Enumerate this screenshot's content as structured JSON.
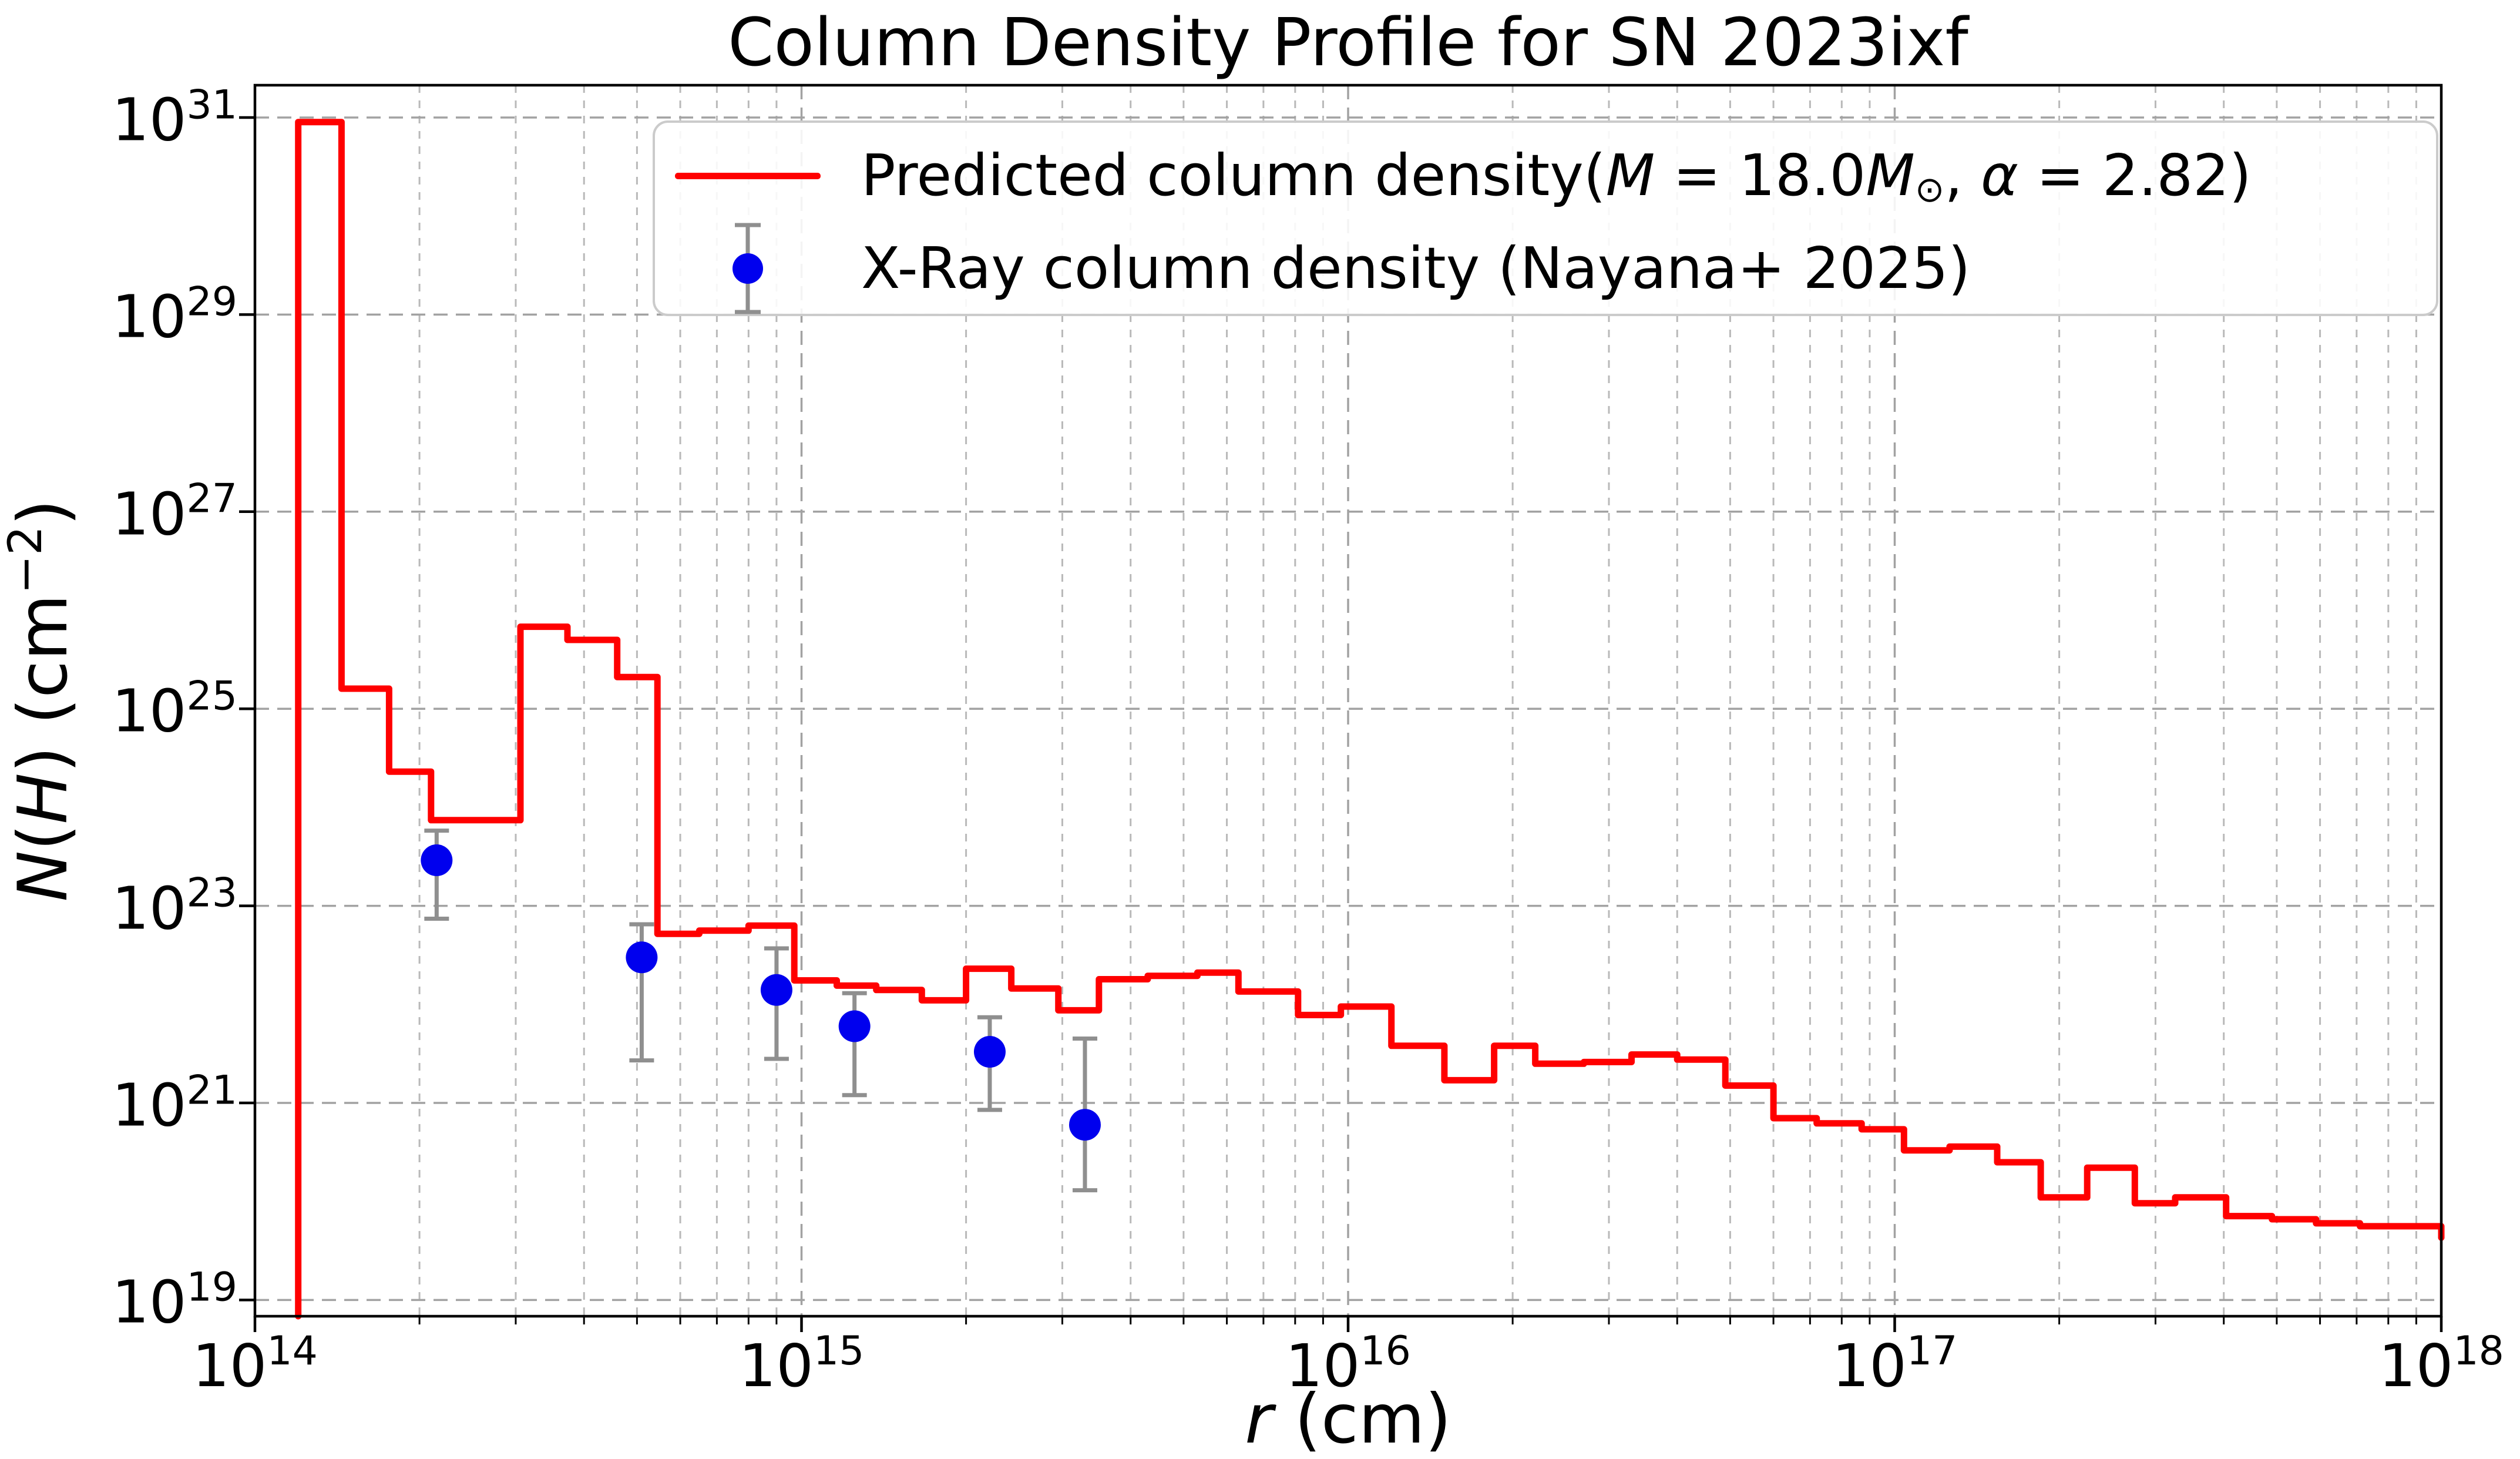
{
  "figure": {
    "title": "Column Density Profile for SN 2023ixf",
    "background_color": "#ffffff"
  },
  "axes": {
    "xlabel_plain": "r (cm)",
    "ylabel_plain": "N(H) (cm−2)",
    "xlabel_segments": [
      {
        "t": "r",
        "i": true
      },
      {
        "t": " (cm)"
      }
    ],
    "ylabel_segments": [
      {
        "t": "N",
        "i": true
      },
      {
        "t": "("
      },
      {
        "t": "H",
        "i": true
      },
      {
        "t": ") (cm"
      },
      {
        "t": "−2",
        "sup": true
      },
      {
        "t": ")"
      }
    ],
    "tick_base": "10",
    "x_tick_exponents": [
      "14",
      "15",
      "16",
      "17",
      "18"
    ],
    "y_tick_exponents": [
      "19",
      "21",
      "23",
      "25",
      "27",
      "29",
      "31"
    ],
    "grid_major_color": "#a2a2a2",
    "grid_minor_color": "#b9b9b9",
    "spine_color": "#000000"
  },
  "legend": {
    "entries": [
      {
        "name": "predicted-column-density",
        "marker": "line",
        "plain": "Predicted column density(M = 18.0M⊙, α = 2.82)",
        "segments": [
          {
            "t": "Predicted column density("
          },
          {
            "t": "M",
            "i": true
          },
          {
            "t": " = 18.0"
          },
          {
            "t": "M",
            "i": true
          },
          {
            "t": "⊙",
            "sub": true
          },
          {
            "t": ", "
          },
          {
            "t": "α",
            "i": true
          },
          {
            "t": " = 2.82)"
          }
        ]
      },
      {
        "name": "xray-column-density",
        "marker": "errorbar-point",
        "plain": "X-Ray column density (Nayana+ 2025)",
        "segments": [
          {
            "t": "X-Ray column density (Nayana+ 2025)"
          }
        ]
      }
    ]
  },
  "chart_data": {
    "type": "step+scatter",
    "title": "Column Density Profile for SN 2023ixf",
    "xlabel": "r (cm)",
    "ylabel": "N(H) (cm^-2)",
    "x_scale": "log",
    "y_scale": "log",
    "xlim": [
      100000000000000.0,
      1e+18
    ],
    "ylim": [
      6.9e+18,
      2.1e+31
    ],
    "grid": {
      "major": true,
      "minor_x": true,
      "style": "dashed"
    },
    "legend_loc": "upper right",
    "series": [
      {
        "name": "Predicted column density (M = 18.0 Msun, alpha = 2.82)",
        "type": "step",
        "color": "#ff0000",
        "linewidth": 11,
        "start_from_bottom": true,
        "bin_edges": [
          120000000000000.0,
          144000000000000.0,
          176000000000000.0,
          210000000000000.0,
          306000000000000.0,
          373000000000000.0,
          460000000000000.0,
          545000000000000.0,
          650000000000000.0,
          800000000000000.0,
          970000000000000.0,
          1160000000000000.0,
          1370000000000000.0,
          1660000000000000.0,
          2000000000000000.0,
          2420000000000000.0,
          2950000000000000.0,
          3500000000000000.0,
          4300000000000000.0,
          5300000000000000.0,
          6300000000000000.0,
          8100000000000000.0,
          9700000000000000.0,
          1.2e+16,
          1.5e+16,
          1.85e+16,
          2.2e+16,
          2.7e+16,
          3.3e+16,
          4e+16,
          4.9e+16,
          6e+16,
          7.2e+16,
          8.7e+16,
          1.04e+17,
          1.26e+17,
          1.54e+17,
          1.85e+17,
          2.25e+17,
          2.75e+17,
          3.26e+17,
          4.04e+17,
          4.9e+17,
          5.9e+17,
          7.1e+17,
          1e+18
        ],
        "values": [
          9e+30,
          1.6e+25,
          2.3e+24,
          7.4e+23,
          6.8e+25,
          5e+25,
          2.1e+25,
          5.2e+22,
          5.6e+22,
          6.3e+22,
          1.75e+22,
          1.55e+22,
          1.4e+22,
          1.1e+22,
          2.3e+22,
          1.45e+22,
          8.7e+21,
          1.8e+22,
          1.95e+22,
          2.1e+22,
          1.35e+22,
          7.8e+21,
          9.5e+21,
          3.8e+21,
          1.7e+21,
          3.8e+21,
          2.5e+21,
          2.6e+21,
          3.1e+21,
          2.75e+21,
          1.5e+21,
          7e+20,
          6.2e+20,
          5.4e+20,
          3.3e+20,
          3.6e+20,
          2.5e+20,
          1.1e+20,
          2.2e+20,
          9.6e+19,
          1.1e+20,
          7.1e+19,
          6.6e+19,
          6e+19,
          5.6e+19
        ],
        "end_drop_to": 4.3e+19
      },
      {
        "name": "X-Ray column density (Nayana+ 2025)",
        "type": "scatter_yerr",
        "color": "#0000ee",
        "error_color": "#8f8f8f",
        "marker": "circle",
        "marker_radius": 27,
        "points": [
          {
            "x": 215000000000000.0,
            "y": 2.9e+23,
            "y_hi": 5.8e+23,
            "y_lo": 7.4e+22
          },
          {
            "x": 510000000000000.0,
            "y": 3e+22,
            "y_hi": 6.5e+22,
            "y_lo": 2.7e+21
          },
          {
            "x": 900000000000000.0,
            "y": 1.4e+22,
            "y_hi": 3.7e+22,
            "y_lo": 2.8e+21
          },
          {
            "x": 1250000000000000.0,
            "y": 6e+21,
            "y_hi": 1.3e+22,
            "y_lo": 1.2e+21
          },
          {
            "x": 2210000000000000.0,
            "y": 3.3e+21,
            "y_hi": 7.4e+21,
            "y_lo": 8.5e+20
          },
          {
            "x": 3300000000000000.0,
            "y": 6e+20,
            "y_hi": 4.5e+21,
            "y_lo": 1.3e+20
          }
        ]
      }
    ]
  }
}
